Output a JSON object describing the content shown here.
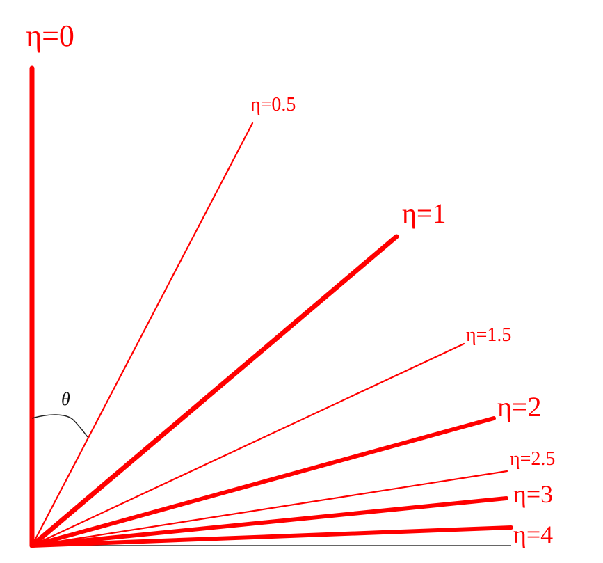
{
  "diagram": {
    "type": "pseudorapidity-rays",
    "angle_label": "θ",
    "colors": {
      "ray": "#ff0000",
      "axis": "#333333",
      "arc": "#222222",
      "text_angle": "#111111"
    },
    "rays": [
      {
        "eta": 0,
        "label": "η=0",
        "weight": "major"
      },
      {
        "eta": 0.5,
        "label": "η=0.5",
        "weight": "minor"
      },
      {
        "eta": 1,
        "label": "η=1",
        "weight": "major"
      },
      {
        "eta": 1.5,
        "label": "η=1.5",
        "weight": "minor"
      },
      {
        "eta": 2,
        "label": "η=2",
        "weight": "major"
      },
      {
        "eta": 2.5,
        "label": "η=2.5",
        "weight": "minor"
      },
      {
        "eta": 3,
        "label": "η=3",
        "weight": "major"
      },
      {
        "eta": 4,
        "label": "η=4",
        "weight": "major"
      }
    ]
  }
}
